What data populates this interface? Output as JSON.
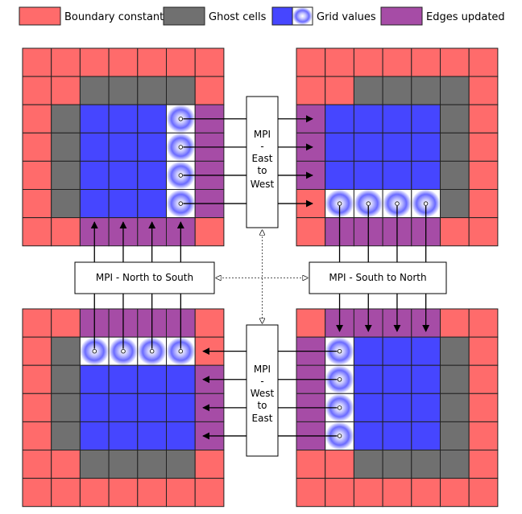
{
  "colors": {
    "boundary": "#ff6b6b",
    "ghost": "#707070",
    "grid": "#4646ff",
    "edge": "#a64ca6",
    "grid_line": "#222222",
    "dashed_connector": "#555555"
  },
  "legend": [
    {
      "key": "boundary",
      "label": "Boundary constant"
    },
    {
      "key": "ghost",
      "label": "Ghost cells"
    },
    {
      "key": "grid",
      "label": "Grid values"
    },
    {
      "key": "edge",
      "label": "Edges updated"
    }
  ],
  "boxes": {
    "east_to_west": [
      "MPI",
      "-",
      "East",
      "to",
      "West"
    ],
    "west_to_east": [
      "MPI",
      "-",
      "West",
      "to",
      "East"
    ],
    "north_to_south": "MPI - North to South",
    "south_to_north": "MPI - South to North"
  }
}
